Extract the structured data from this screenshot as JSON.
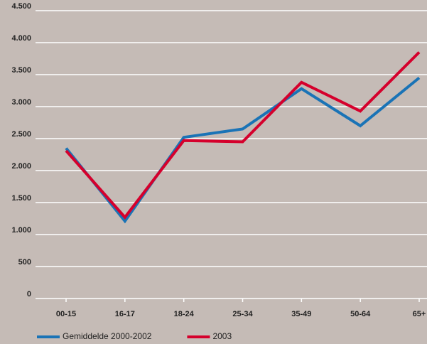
{
  "chart_data": {
    "type": "line",
    "categories": [
      "00-15",
      "16-17",
      "18-24",
      "25-34",
      "35-49",
      "50-64",
      "65+"
    ],
    "series": [
      {
        "name": "Gemiddelde 2000-2002",
        "color": "#1a73b6",
        "values": [
          2350,
          1210,
          2520,
          2650,
          3280,
          2700,
          3450
        ]
      },
      {
        "name": "2003",
        "color": "#d5002c",
        "values": [
          2310,
          1270,
          2470,
          2450,
          3380,
          2930,
          3850
        ]
      }
    ],
    "ylim": [
      0,
      4500
    ],
    "yticks": [
      0,
      500,
      {
        "value": 1000,
        "label": "1.000"
      },
      {
        "value": 1500,
        "label": "1.500"
      },
      {
        "value": 2000,
        "label": "2.000"
      },
      {
        "value": 2500,
        "label": "2.500"
      },
      {
        "value": 3000,
        "label": "3.000"
      },
      {
        "value": 3500,
        "label": "3.500"
      },
      {
        "value": 4000,
        "label": "4.000"
      },
      {
        "value": 4500,
        "label": "4.500"
      }
    ],
    "grid": true
  }
}
